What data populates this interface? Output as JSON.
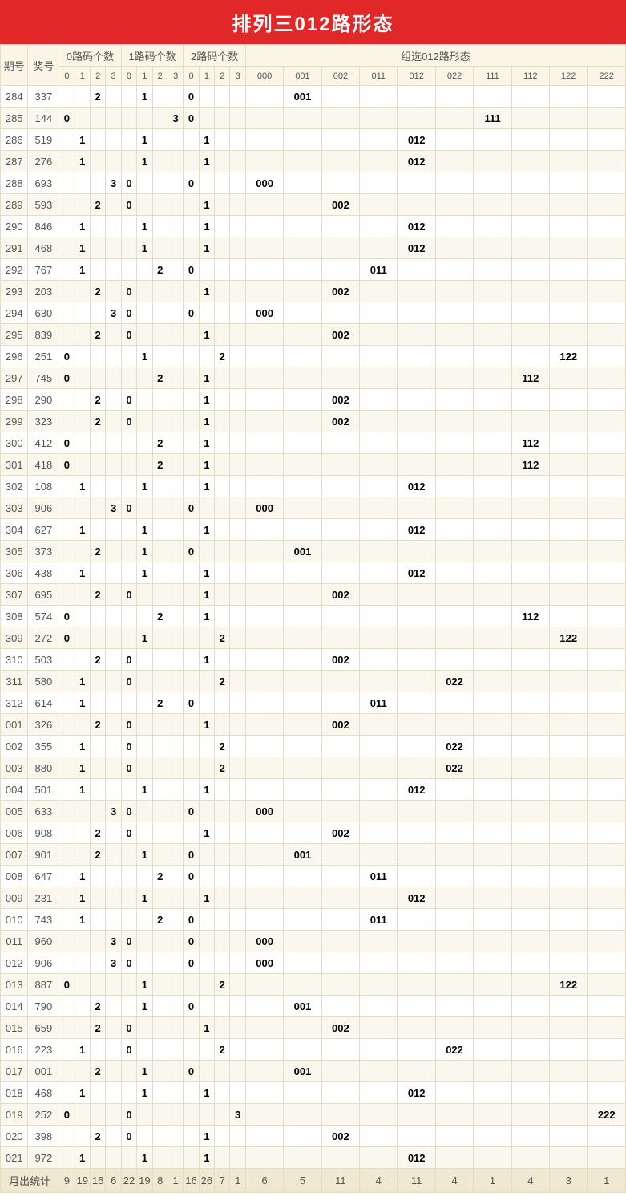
{
  "title": "排列三012路形态",
  "header": {
    "qh": "期号",
    "jh": "奖号",
    "g0": "0路码个数",
    "g1": "1路码个数",
    "g2": "2路码个数",
    "gs": "组选012路形态",
    "subs_n": [
      "0",
      "1",
      "2",
      "3"
    ],
    "subs_s": [
      "000",
      "001",
      "002",
      "011",
      "012",
      "022",
      "111",
      "112",
      "122",
      "222"
    ]
  },
  "footer_label": "月出统计",
  "footer": [
    "9",
    "19",
    "16",
    "6",
    "22",
    "19",
    "8",
    "1",
    "16",
    "26",
    "7",
    "1",
    "6",
    "5",
    "11",
    "4",
    "11",
    "4",
    "1",
    "4",
    "3",
    "1"
  ],
  "rows": [
    [
      "284",
      "337",
      "",
      "",
      "2",
      "",
      "",
      "1",
      "",
      "",
      "0",
      "",
      "",
      "",
      "",
      "001",
      "",
      "",
      "",
      "",
      "",
      "",
      "",
      ""
    ],
    [
      "285",
      "144",
      "0",
      "",
      "",
      "",
      "",
      "",
      "",
      "3",
      "0",
      "",
      "",
      "",
      "",
      "",
      "",
      "",
      "",
      "",
      "111",
      "",
      "",
      ""
    ],
    [
      "286",
      "519",
      "",
      "1",
      "",
      "",
      "",
      "1",
      "",
      "",
      "",
      "1",
      "",
      "",
      "",
      "",
      "",
      "",
      "012",
      "",
      "",
      "",
      "",
      ""
    ],
    [
      "287",
      "276",
      "",
      "1",
      "",
      "",
      "",
      "1",
      "",
      "",
      "",
      "1",
      "",
      "",
      "",
      "",
      "",
      "",
      "012",
      "",
      "",
      "",
      "",
      ""
    ],
    [
      "288",
      "693",
      "",
      "",
      "",
      "3",
      "0",
      "",
      "",
      "",
      "0",
      "",
      "",
      "",
      "000",
      "",
      "",
      "",
      "",
      "",
      "",
      "",
      "",
      ""
    ],
    [
      "289",
      "593",
      "",
      "",
      "2",
      "",
      "0",
      "",
      "",
      "",
      "",
      "1",
      "",
      "",
      "",
      "",
      "002",
      "",
      "",
      "",
      "",
      "",
      "",
      ""
    ],
    [
      "290",
      "846",
      "",
      "1",
      "",
      "",
      "",
      "1",
      "",
      "",
      "",
      "1",
      "",
      "",
      "",
      "",
      "",
      "",
      "012",
      "",
      "",
      "",
      "",
      ""
    ],
    [
      "291",
      "468",
      "",
      "1",
      "",
      "",
      "",
      "1",
      "",
      "",
      "",
      "1",
      "",
      "",
      "",
      "",
      "",
      "",
      "012",
      "",
      "",
      "",
      "",
      ""
    ],
    [
      "292",
      "767",
      "",
      "1",
      "",
      "",
      "",
      "",
      "2",
      "",
      "0",
      "",
      "",
      "",
      "",
      "",
      "",
      "011",
      "",
      "",
      "",
      "",
      "",
      ""
    ],
    [
      "293",
      "203",
      "",
      "",
      "2",
      "",
      "0",
      "",
      "",
      "",
      "",
      "1",
      "",
      "",
      "",
      "",
      "002",
      "",
      "",
      "",
      "",
      "",
      "",
      ""
    ],
    [
      "294",
      "630",
      "",
      "",
      "",
      "3",
      "0",
      "",
      "",
      "",
      "0",
      "",
      "",
      "",
      "000",
      "",
      "",
      "",
      "",
      "",
      "",
      "",
      "",
      ""
    ],
    [
      "295",
      "839",
      "",
      "",
      "2",
      "",
      "0",
      "",
      "",
      "",
      "",
      "1",
      "",
      "",
      "",
      "",
      "002",
      "",
      "",
      "",
      "",
      "",
      "",
      ""
    ],
    [
      "296",
      "251",
      "0",
      "",
      "",
      "",
      "",
      "1",
      "",
      "",
      "",
      "",
      "2",
      "",
      "",
      "",
      "",
      "",
      "",
      "",
      "",
      "",
      "122",
      ""
    ],
    [
      "297",
      "745",
      "0",
      "",
      "",
      "",
      "",
      "",
      "2",
      "",
      "",
      "1",
      "",
      "",
      "",
      "",
      "",
      "",
      "",
      "",
      "",
      "112",
      "",
      ""
    ],
    [
      "298",
      "290",
      "",
      "",
      "2",
      "",
      "0",
      "",
      "",
      "",
      "",
      "1",
      "",
      "",
      "",
      "",
      "002",
      "",
      "",
      "",
      "",
      "",
      "",
      ""
    ],
    [
      "299",
      "323",
      "",
      "",
      "2",
      "",
      "0",
      "",
      "",
      "",
      "",
      "1",
      "",
      "",
      "",
      "",
      "002",
      "",
      "",
      "",
      "",
      "",
      "",
      ""
    ],
    [
      "300",
      "412",
      "0",
      "",
      "",
      "",
      "",
      "",
      "2",
      "",
      "",
      "1",
      "",
      "",
      "",
      "",
      "",
      "",
      "",
      "",
      "",
      "112",
      "",
      ""
    ],
    [
      "301",
      "418",
      "0",
      "",
      "",
      "",
      "",
      "",
      "2",
      "",
      "",
      "1",
      "",
      "",
      "",
      "",
      "",
      "",
      "",
      "",
      "",
      "112",
      "",
      ""
    ],
    [
      "302",
      "108",
      "",
      "1",
      "",
      "",
      "",
      "1",
      "",
      "",
      "",
      "1",
      "",
      "",
      "",
      "",
      "",
      "",
      "012",
      "",
      "",
      "",
      "",
      ""
    ],
    [
      "303",
      "906",
      "",
      "",
      "",
      "3",
      "0",
      "",
      "",
      "",
      "0",
      "",
      "",
      "",
      "000",
      "",
      "",
      "",
      "",
      "",
      "",
      "",
      "",
      ""
    ],
    [
      "304",
      "627",
      "",
      "1",
      "",
      "",
      "",
      "1",
      "",
      "",
      "",
      "1",
      "",
      "",
      "",
      "",
      "",
      "",
      "012",
      "",
      "",
      "",
      "",
      ""
    ],
    [
      "305",
      "373",
      "",
      "",
      "2",
      "",
      "",
      "1",
      "",
      "",
      "0",
      "",
      "",
      "",
      "",
      "001",
      "",
      "",
      "",
      "",
      "",
      "",
      "",
      ""
    ],
    [
      "306",
      "438",
      "",
      "1",
      "",
      "",
      "",
      "1",
      "",
      "",
      "",
      "1",
      "",
      "",
      "",
      "",
      "",
      "",
      "012",
      "",
      "",
      "",
      "",
      ""
    ],
    [
      "307",
      "695",
      "",
      "",
      "2",
      "",
      "0",
      "",
      "",
      "",
      "",
      "1",
      "",
      "",
      "",
      "",
      "002",
      "",
      "",
      "",
      "",
      "",
      "",
      ""
    ],
    [
      "308",
      "574",
      "0",
      "",
      "",
      "",
      "",
      "",
      "2",
      "",
      "",
      "1",
      "",
      "",
      "",
      "",
      "",
      "",
      "",
      "",
      "",
      "112",
      "",
      ""
    ],
    [
      "309",
      "272",
      "0",
      "",
      "",
      "",
      "",
      "1",
      "",
      "",
      "",
      "",
      "2",
      "",
      "",
      "",
      "",
      "",
      "",
      "",
      "",
      "",
      "122",
      ""
    ],
    [
      "310",
      "503",
      "",
      "",
      "2",
      "",
      "0",
      "",
      "",
      "",
      "",
      "1",
      "",
      "",
      "",
      "",
      "002",
      "",
      "",
      "",
      "",
      "",
      "",
      ""
    ],
    [
      "311",
      "580",
      "",
      "1",
      "",
      "",
      "0",
      "",
      "",
      "",
      "",
      "",
      "2",
      "",
      "",
      "",
      "",
      "",
      "",
      "022",
      "",
      "",
      "",
      ""
    ],
    [
      "312",
      "614",
      "",
      "1",
      "",
      "",
      "",
      "",
      "2",
      "",
      "0",
      "",
      "",
      "",
      "",
      "",
      "",
      "011",
      "",
      "",
      "",
      "",
      "",
      ""
    ],
    [
      "001",
      "326",
      "",
      "",
      "2",
      "",
      "0",
      "",
      "",
      "",
      "",
      "1",
      "",
      "",
      "",
      "",
      "002",
      "",
      "",
      "",
      "",
      "",
      "",
      ""
    ],
    [
      "002",
      "355",
      "",
      "1",
      "",
      "",
      "0",
      "",
      "",
      "",
      "",
      "",
      "2",
      "",
      "",
      "",
      "",
      "",
      "",
      "022",
      "",
      "",
      "",
      ""
    ],
    [
      "003",
      "880",
      "",
      "1",
      "",
      "",
      "0",
      "",
      "",
      "",
      "",
      "",
      "2",
      "",
      "",
      "",
      "",
      "",
      "",
      "022",
      "",
      "",
      "",
      ""
    ],
    [
      "004",
      "501",
      "",
      "1",
      "",
      "",
      "",
      "1",
      "",
      "",
      "",
      "1",
      "",
      "",
      "",
      "",
      "",
      "",
      "012",
      "",
      "",
      "",
      "",
      ""
    ],
    [
      "005",
      "633",
      "",
      "",
      "",
      "3",
      "0",
      "",
      "",
      "",
      "0",
      "",
      "",
      "",
      "000",
      "",
      "",
      "",
      "",
      "",
      "",
      "",
      "",
      ""
    ],
    [
      "006",
      "908",
      "",
      "",
      "2",
      "",
      "0",
      "",
      "",
      "",
      "",
      "1",
      "",
      "",
      "",
      "",
      "002",
      "",
      "",
      "",
      "",
      "",
      "",
      ""
    ],
    [
      "007",
      "901",
      "",
      "",
      "2",
      "",
      "",
      "1",
      "",
      "",
      "0",
      "",
      "",
      "",
      "",
      "001",
      "",
      "",
      "",
      "",
      "",
      "",
      "",
      ""
    ],
    [
      "008",
      "647",
      "",
      "1",
      "",
      "",
      "",
      "",
      "2",
      "",
      "0",
      "",
      "",
      "",
      "",
      "",
      "",
      "011",
      "",
      "",
      "",
      "",
      "",
      ""
    ],
    [
      "009",
      "231",
      "",
      "1",
      "",
      "",
      "",
      "1",
      "",
      "",
      "",
      "1",
      "",
      "",
      "",
      "",
      "",
      "",
      "012",
      "",
      "",
      "",
      "",
      ""
    ],
    [
      "010",
      "743",
      "",
      "1",
      "",
      "",
      "",
      "",
      "2",
      "",
      "0",
      "",
      "",
      "",
      "",
      "",
      "",
      "011",
      "",
      "",
      "",
      "",
      "",
      ""
    ],
    [
      "011",
      "960",
      "",
      "",
      "",
      "3",
      "0",
      "",
      "",
      "",
      "0",
      "",
      "",
      "",
      "000",
      "",
      "",
      "",
      "",
      "",
      "",
      "",
      "",
      ""
    ],
    [
      "012",
      "906",
      "",
      "",
      "",
      "3",
      "0",
      "",
      "",
      "",
      "0",
      "",
      "",
      "",
      "000",
      "",
      "",
      "",
      "",
      "",
      "",
      "",
      "",
      ""
    ],
    [
      "013",
      "887",
      "0",
      "",
      "",
      "",
      "",
      "1",
      "",
      "",
      "",
      "",
      "2",
      "",
      "",
      "",
      "",
      "",
      "",
      "",
      "",
      "",
      "122",
      ""
    ],
    [
      "014",
      "790",
      "",
      "",
      "2",
      "",
      "",
      "1",
      "",
      "",
      "0",
      "",
      "",
      "",
      "",
      "001",
      "",
      "",
      "",
      "",
      "",
      "",
      "",
      ""
    ],
    [
      "015",
      "659",
      "",
      "",
      "2",
      "",
      "0",
      "",
      "",
      "",
      "",
      "1",
      "",
      "",
      "",
      "",
      "002",
      "",
      "",
      "",
      "",
      "",
      "",
      ""
    ],
    [
      "016",
      "223",
      "",
      "1",
      "",
      "",
      "0",
      "",
      "",
      "",
      "",
      "",
      "2",
      "",
      "",
      "",
      "",
      "",
      "",
      "022",
      "",
      "",
      "",
      ""
    ],
    [
      "017",
      "001",
      "",
      "",
      "2",
      "",
      "",
      "1",
      "",
      "",
      "0",
      "",
      "",
      "",
      "",
      "001",
      "",
      "",
      "",
      "",
      "",
      "",
      "",
      ""
    ],
    [
      "018",
      "468",
      "",
      "1",
      "",
      "",
      "",
      "1",
      "",
      "",
      "",
      "1",
      "",
      "",
      "",
      "",
      "",
      "",
      "012",
      "",
      "",
      "",
      "",
      ""
    ],
    [
      "019",
      "252",
      "0",
      "",
      "",
      "",
      "0",
      "",
      "",
      "",
      "",
      "",
      "",
      "3",
      "",
      "",
      "",
      "",
      "",
      "",
      "",
      "",
      "",
      "222"
    ],
    [
      "020",
      "398",
      "",
      "",
      "2",
      "",
      "0",
      "",
      "",
      "",
      "",
      "1",
      "",
      "",
      "",
      "",
      "002",
      "",
      "",
      "",
      "",
      "",
      "",
      ""
    ],
    [
      "021",
      "972",
      "",
      "1",
      "",
      "",
      "",
      "1",
      "",
      "",
      "",
      "1",
      "",
      "",
      "",
      "",
      "",
      "",
      "012",
      "",
      "",
      "",
      "",
      ""
    ]
  ],
  "colors": {
    "title_bg": "#e12727",
    "head_bg": "#faf5e6",
    "border": "#e8dcc0",
    "stripe": "#faf7ee",
    "footer_bg": "#f0e8d0"
  },
  "fontsize": {
    "title": 24,
    "cell": 13,
    "sub": 11
  }
}
